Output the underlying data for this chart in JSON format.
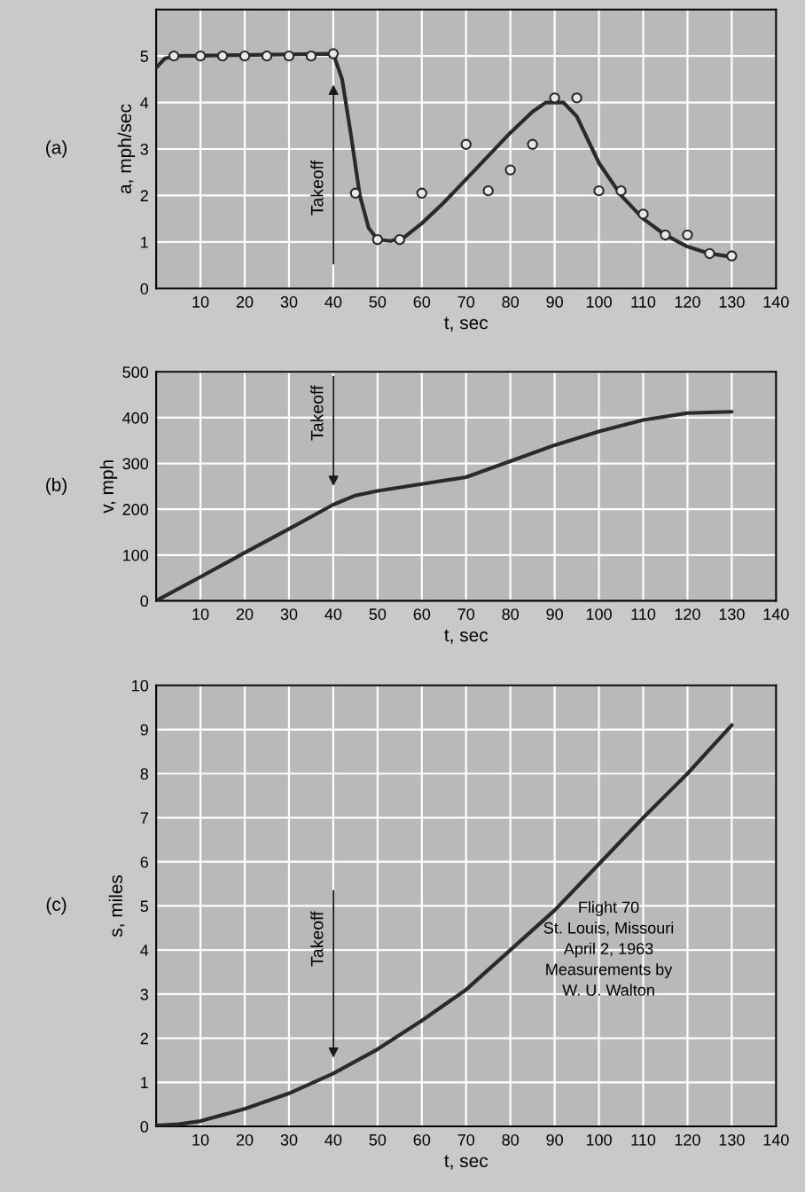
{
  "chart_data": [
    {
      "type": "line",
      "xlabel": "t, sec",
      "ylabel": "a, mph/sec",
      "xlim": [
        0,
        140
      ],
      "ylim": [
        0,
        6
      ],
      "xticks": [
        10,
        20,
        30,
        40,
        50,
        60,
        70,
        80,
        90,
        100,
        110,
        120,
        130,
        140
      ],
      "yticks": [
        0,
        1,
        2,
        3,
        4,
        5
      ],
      "grid": true,
      "annotations": [
        "(a)",
        "Takeoff"
      ],
      "series": [
        {
          "type": "scatter",
          "marker": "circle",
          "color": "#2a2a2a",
          "x": [
            4,
            10,
            15,
            20,
            25,
            30,
            35,
            40,
            45,
            50,
            55,
            60,
            70,
            75,
            80,
            85,
            90,
            95,
            100,
            105,
            110,
            115,
            120,
            125,
            130
          ],
          "values": [
            5.0,
            5.0,
            5.0,
            5.0,
            5.0,
            5.0,
            5.0,
            5.05,
            2.05,
            1.05,
            1.05,
            2.05,
            3.1,
            2.1,
            2.55,
            3.1,
            4.1,
            4.1,
            2.1,
            2.1,
            1.6,
            1.15,
            1.15,
            0.75,
            0.7
          ]
        },
        {
          "color": "#2a2a2a",
          "x": [
            0,
            2,
            5,
            40,
            42,
            44,
            46,
            48,
            50,
            53,
            56,
            60,
            65,
            70,
            75,
            80,
            85,
            88,
            92,
            95,
            98,
            100,
            105,
            110,
            115,
            120,
            125,
            130
          ],
          "values": [
            4.75,
            4.95,
            5.0,
            5.05,
            4.5,
            3.3,
            2.0,
            1.3,
            1.05,
            1.02,
            1.1,
            1.4,
            1.85,
            2.35,
            2.85,
            3.35,
            3.8,
            4.0,
            4.0,
            3.7,
            3.1,
            2.7,
            2.0,
            1.5,
            1.15,
            0.9,
            0.75,
            0.68
          ]
        }
      ]
    },
    {
      "type": "line",
      "xlabel": "t, sec",
      "ylabel": "v, mph",
      "xlim": [
        0,
        140
      ],
      "ylim": [
        0,
        500
      ],
      "xticks": [
        10,
        20,
        30,
        40,
        50,
        60,
        70,
        80,
        90,
        100,
        110,
        120,
        130,
        140
      ],
      "yticks": [
        0,
        100,
        200,
        300,
        400,
        500
      ],
      "grid": true,
      "annotations": [
        "(b)",
        "Takeoff"
      ],
      "series": [
        {
          "color": "#2a2a2a",
          "x": [
            0,
            10,
            20,
            30,
            40,
            45,
            50,
            60,
            70,
            80,
            90,
            100,
            110,
            120,
            130
          ],
          "values": [
            0,
            52,
            105,
            157,
            210,
            230,
            240,
            255,
            270,
            305,
            340,
            370,
            395,
            410,
            413
          ]
        }
      ]
    },
    {
      "type": "line",
      "xlabel": "t, sec",
      "ylabel": "s, miles",
      "xlim": [
        0,
        140
      ],
      "ylim": [
        0,
        10
      ],
      "xticks": [
        10,
        20,
        30,
        40,
        50,
        60,
        70,
        80,
        90,
        100,
        110,
        120,
        130,
        140
      ],
      "yticks": [
        0,
        1,
        2,
        3,
        4,
        5,
        6,
        7,
        8,
        9,
        10
      ],
      "grid": true,
      "annotations": [
        "(c)",
        "Takeoff",
        "Flight 70\nSt. Louis, Missouri\nApril 2, 1963\nMeasurements by\nW. U. Walton"
      ],
      "series": [
        {
          "color": "#2a2a2a",
          "x": [
            0,
            5,
            10,
            20,
            30,
            40,
            50,
            60,
            70,
            80,
            90,
            100,
            110,
            120,
            130
          ],
          "values": [
            0.02,
            0.05,
            0.12,
            0.4,
            0.75,
            1.2,
            1.75,
            2.4,
            3.1,
            4.0,
            4.9,
            5.95,
            7.0,
            8.0,
            9.1
          ]
        }
      ]
    }
  ]
}
